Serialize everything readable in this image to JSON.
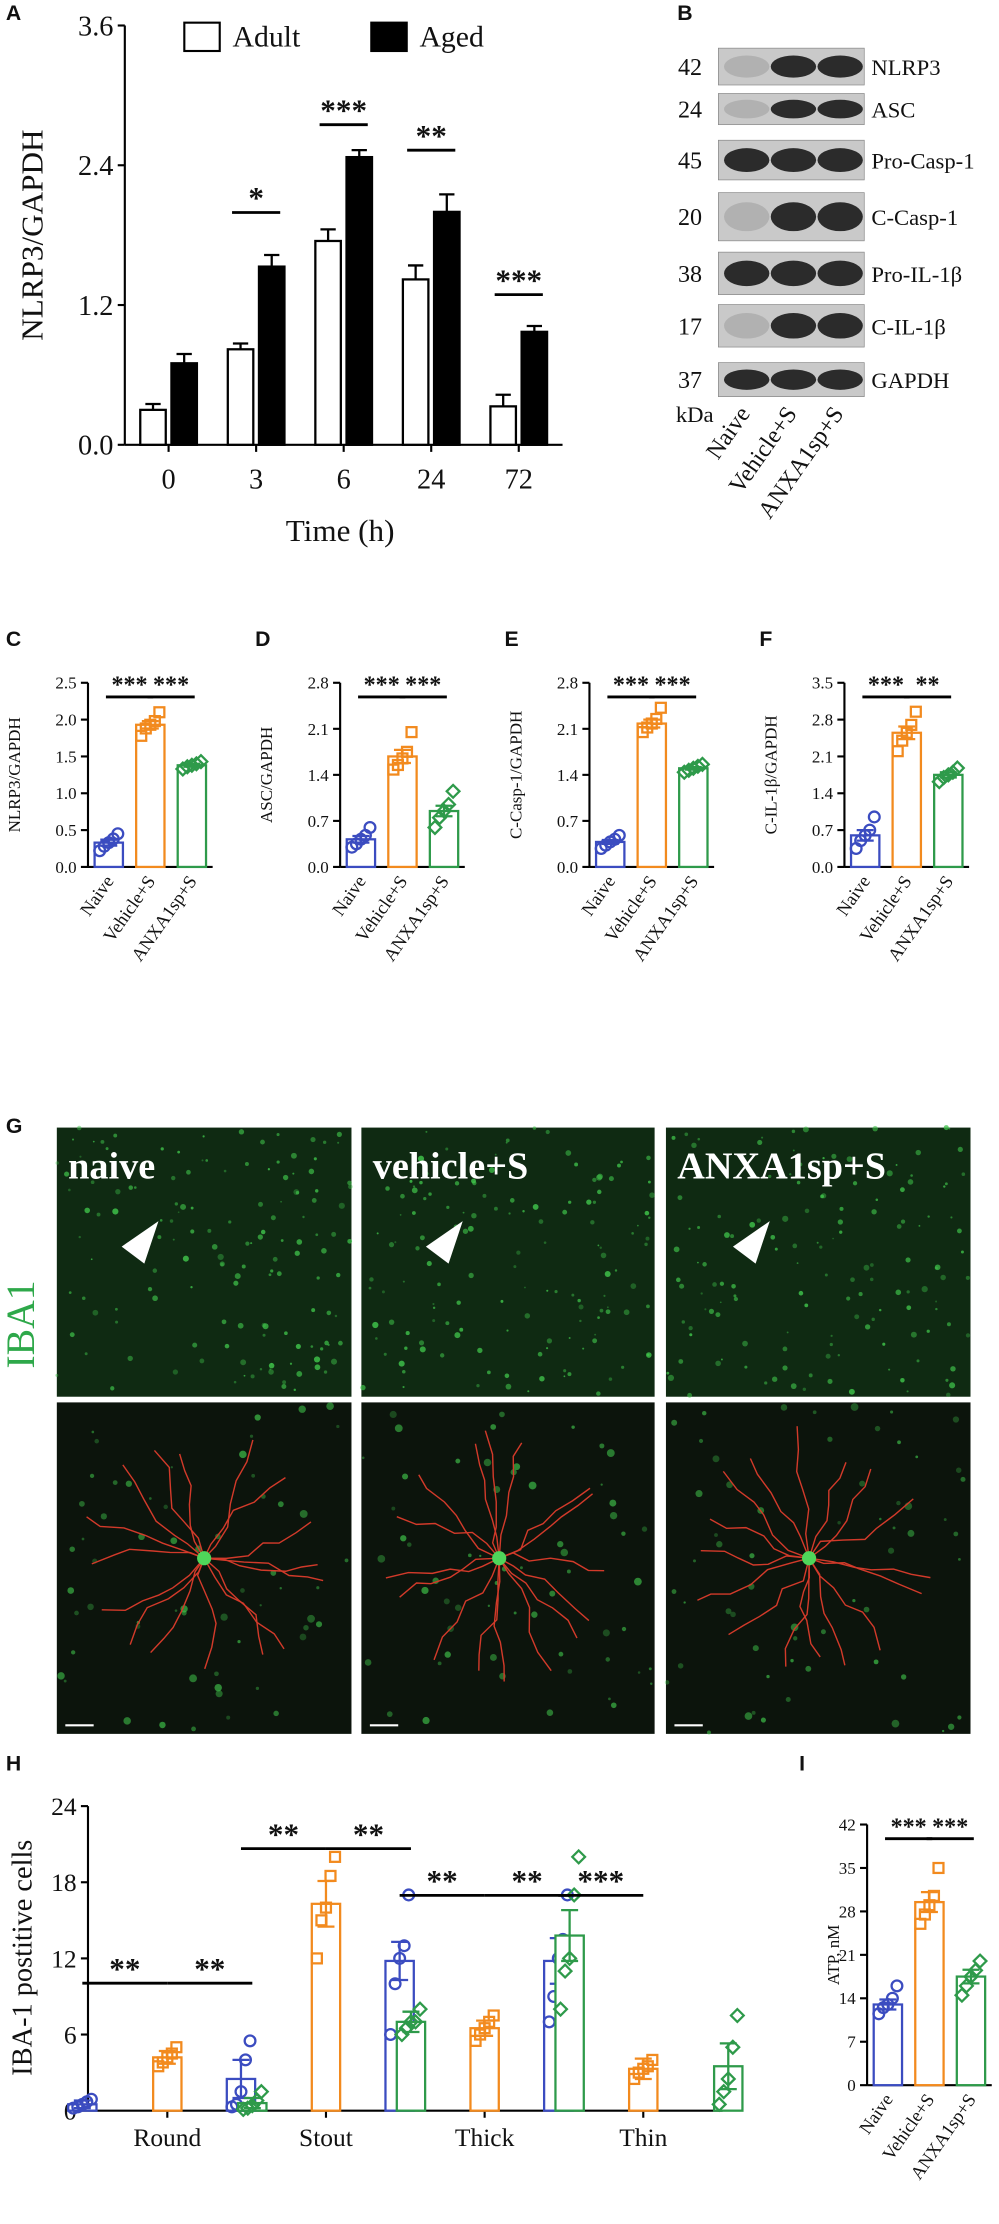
{
  "chart_data": [
    {
      "type": "bar",
      "panel": "A",
      "ylabel": "NLRP3/GAPDH",
      "xlabel": "Time (h)",
      "categories": [
        "0",
        "3",
        "6",
        "24",
        "72"
      ],
      "edge_color": "#000000",
      "series": [
        {
          "name": "Adult",
          "color": "#ffffff",
          "values": [
            0.3,
            0.82,
            1.75,
            1.42,
            0.33
          ],
          "errors": [
            0.05,
            0.05,
            0.1,
            0.12,
            0.1
          ]
        },
        {
          "name": "Aged",
          "color": "#000000",
          "values": [
            0.7,
            1.53,
            2.47,
            2.0,
            0.97
          ],
          "errors": [
            0.08,
            0.1,
            0.06,
            0.15,
            0.05
          ]
        }
      ],
      "ylim": [
        0,
        3.6
      ],
      "yticks": [
        {
          "value": 0,
          "label": "0.0"
        },
        1.2,
        2.4,
        3.6
      ],
      "significance": [
        "*",
        "***",
        "**",
        "***"
      ]
    },
    {
      "type": "bar",
      "panel": "C",
      "ylabel": "NLRP3/GAPDH",
      "categories": [
        "Naive",
        "Vehicle+S",
        "ANXA1sp+S"
      ],
      "colors": [
        "#3b4cc0",
        "#f28a1e",
        "#2e9a4a"
      ],
      "markers": [
        "circle",
        "square",
        "diamond"
      ],
      "bar_fill": "#ffffff",
      "values": [
        0.33,
        1.93,
        1.38
      ],
      "errors": [
        0.04,
        0.05,
        0.02
      ],
      "points": [
        [
          0.22,
          0.28,
          0.33,
          0.38,
          0.45
        ],
        [
          1.78,
          1.88,
          1.93,
          1.98,
          2.1
        ],
        [
          1.33,
          1.36,
          1.38,
          1.4,
          1.43
        ]
      ],
      "ylim": [
        0,
        2.5
      ],
      "yticks": [
        {
          "value": 0,
          "label": "0.0"
        },
        0.5,
        {
          "value": 1,
          "label": "1.0"
        },
        1.5,
        {
          "value": 2,
          "label": "2.0"
        },
        2.5
      ],
      "significance": [
        "***",
        "***"
      ]
    },
    {
      "type": "bar",
      "panel": "D",
      "ylabel": "ASC/GAPDH",
      "categories": [
        "Naive",
        "Vehicle+S",
        "ANXA1sp+S"
      ],
      "colors": [
        "#3b4cc0",
        "#f28a1e",
        "#2e9a4a"
      ],
      "markers": [
        "circle",
        "square",
        "diamond"
      ],
      "bar_fill": "#ffffff",
      "values": [
        0.42,
        1.68,
        0.85
      ],
      "errors": [
        0.05,
        0.1,
        0.08
      ],
      "points": [
        [
          0.3,
          0.35,
          0.42,
          0.48,
          0.6
        ],
        [
          1.48,
          1.55,
          1.65,
          1.75,
          2.05
        ],
        [
          0.6,
          0.75,
          0.85,
          0.95,
          1.15
        ]
      ],
      "ylim": [
        0,
        2.8
      ],
      "yticks": [
        {
          "value": 0,
          "label": "0.0"
        },
        0.7,
        1.4,
        2.1,
        2.8
      ],
      "significance": [
        "***",
        "***"
      ]
    },
    {
      "type": "bar",
      "panel": "E",
      "ylabel": "C-Casp-1/GAPDH",
      "categories": [
        "Naive",
        "Vehicle+S",
        "ANXA1sp+S"
      ],
      "colors": [
        "#3b4cc0",
        "#f28a1e",
        "#2e9a4a"
      ],
      "markers": [
        "circle",
        "square",
        "diamond"
      ],
      "bar_fill": "#ffffff",
      "values": [
        0.38,
        2.18,
        1.5
      ],
      "errors": [
        0.03,
        0.06,
        0.02
      ],
      "points": [
        [
          0.28,
          0.33,
          0.38,
          0.42,
          0.48
        ],
        [
          2.05,
          2.12,
          2.18,
          2.25,
          2.42
        ],
        [
          1.44,
          1.47,
          1.5,
          1.53,
          1.56
        ]
      ],
      "ylim": [
        0,
        2.8
      ],
      "yticks": [
        {
          "value": 0,
          "label": "0.0"
        },
        0.7,
        1.4,
        2.1,
        2.8
      ],
      "significance": [
        "***",
        "***"
      ]
    },
    {
      "type": "bar",
      "panel": "F",
      "ylabel": "C-IL-1β/GAPDH",
      "categories": [
        "Naive",
        "Vehicle+S",
        "ANXA1sp+S"
      ],
      "colors": [
        "#3b4cc0",
        "#f28a1e",
        "#2e9a4a"
      ],
      "markers": [
        "circle",
        "square",
        "diamond"
      ],
      "bar_fill": "#ffffff",
      "values": [
        0.6,
        2.55,
        1.75
      ],
      "errors": [
        0.1,
        0.12,
        0.05
      ],
      "points": [
        [
          0.35,
          0.5,
          0.6,
          0.7,
          0.95
        ],
        [
          2.2,
          2.4,
          2.55,
          2.7,
          2.95
        ],
        [
          1.62,
          1.7,
          1.75,
          1.8,
          1.88
        ]
      ],
      "ylim": [
        0,
        3.5
      ],
      "yticks": [
        {
          "value": 0,
          "label": "0.0"
        },
        0.7,
        1.4,
        2.1,
        2.8,
        3.5
      ],
      "significance": [
        "***",
        "**"
      ]
    },
    {
      "type": "bar",
      "panel": "H",
      "ylabel": "IBA-1 postitive cells",
      "categories": [
        "Round",
        "Stout",
        "Thick",
        "Thin"
      ],
      "bar_fill": "#ffffff",
      "series": [
        {
          "color": "#3b4cc0",
          "marker": "circle",
          "values": [
            0.5,
            2.5,
            11.8,
            11.8
          ],
          "errors": [
            0.3,
            1.5,
            1.5,
            1.8
          ],
          "points": [
            [
              0.2,
              0.3,
              0.5,
              0.7,
              0.9
            ],
            [
              0.3,
              0.5,
              1.5,
              4,
              5.5
            ],
            [
              6,
              10,
              12,
              13,
              17
            ],
            [
              7,
              9,
              12,
              13.5,
              17
            ]
          ]
        },
        {
          "color": "#f28a1e",
          "marker": "square",
          "values": [
            4.2,
            16.3,
            6.5,
            3.3
          ],
          "errors": [
            0.5,
            1.8,
            0.6,
            0.8
          ],
          "points": [
            [
              3.5,
              3.8,
              4.2,
              4.5,
              5
            ],
            [
              12,
              15,
              16,
              18.5,
              20
            ],
            [
              5.5,
              6,
              6.5,
              7,
              7.5
            ],
            [
              2.5,
              3,
              3.3,
              3.5,
              4
            ]
          ]
        },
        {
          "color": "#2e9a4a",
          "marker": "diamond",
          "values": [
            0.6,
            7,
            13.8,
            3.5
          ],
          "errors": [
            0.4,
            0.8,
            2,
            1.8
          ],
          "points": [
            [
              0.1,
              0.2,
              0.4,
              0.8,
              1.5
            ],
            [
              6,
              6.5,
              7,
              7,
              8
            ],
            [
              8,
              11,
              12,
              17,
              20
            ],
            [
              0.5,
              1.5,
              2.5,
              5,
              7.5
            ]
          ]
        }
      ],
      "ylim": [
        0,
        24
      ],
      "yticks": [
        0,
        6,
        12,
        18,
        24
      ],
      "significance": [
        "**",
        "**",
        "**",
        "**",
        "**",
        "**",
        "***"
      ]
    },
    {
      "type": "bar",
      "panel": "I",
      "ylabel": "ATP, nM",
      "categories": [
        "Naive",
        "Vehicle+S",
        "ANXA1sp+S"
      ],
      "colors": [
        "#3b4cc0",
        "#f28a1e",
        "#2e9a4a"
      ],
      "markers": [
        "circle",
        "square",
        "diamond"
      ],
      "bar_fill": "#ffffff",
      "values": [
        13,
        29.5,
        17.5
      ],
      "errors": [
        0.8,
        1.6,
        1.1
      ],
      "points": [
        [
          11.5,
          12.5,
          13,
          14,
          16
        ],
        [
          26,
          27.5,
          29,
          30.5,
          35
        ],
        [
          14.5,
          16,
          17.5,
          18.5,
          20
        ]
      ],
      "ylim": [
        0,
        42
      ],
      "yticks": [
        0,
        7,
        14,
        21,
        28,
        35,
        42
      ],
      "significance": [
        "***",
        "***"
      ]
    }
  ],
  "blot": {
    "panel": "B",
    "unit": "kDa",
    "lanes": [
      "Naive",
      "Vehicle+S",
      "ANXA1sp+S"
    ],
    "rows": [
      {
        "kda": 42,
        "label": "NLRP3"
      },
      {
        "kda": 24,
        "label": "ASC"
      },
      {
        "kda": 45,
        "label": "Pro-Casp-1"
      },
      {
        "kda": 20,
        "label": "C-Casp-1"
      },
      {
        "kda": 38,
        "label": "Pro-IL-1β"
      },
      {
        "kda": 17,
        "label": "C-IL-1β"
      },
      {
        "kda": 37,
        "label": "GAPDH"
      }
    ]
  },
  "micrographs": {
    "panel": "G",
    "stain": "IBA1",
    "conditions": [
      "naive",
      "vehicle+S",
      "ANXA1sp+S"
    ]
  }
}
